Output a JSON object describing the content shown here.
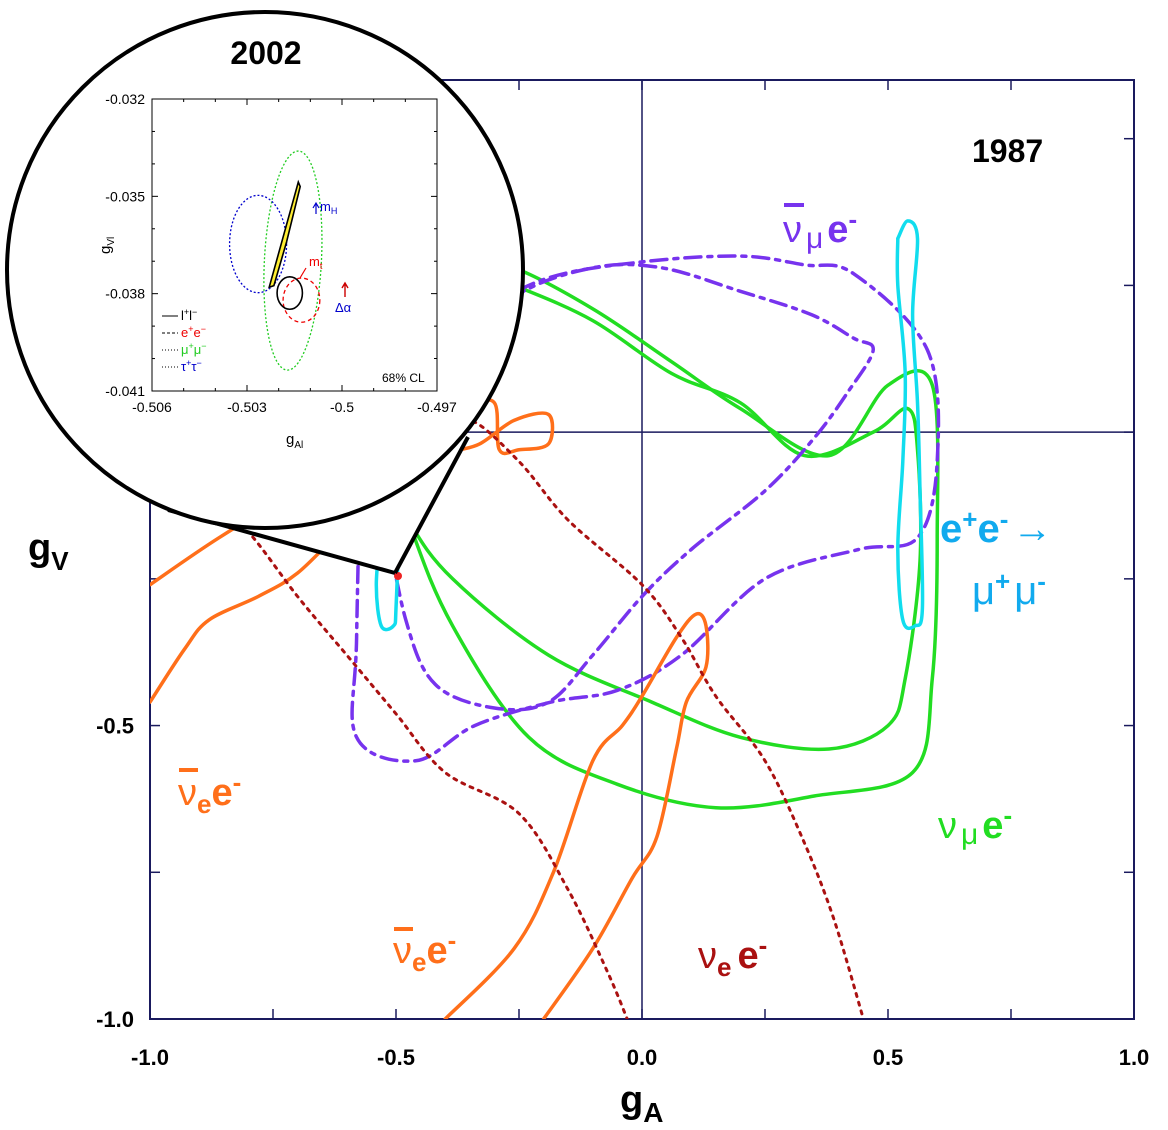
{
  "chart_data": [
    {
      "type": "line",
      "title": "1987",
      "xlabel": "g",
      "xlabel_sub": "A",
      "ylabel": "g",
      "ylabel_sub": "V",
      "xlim": [
        -1.0,
        1.0
      ],
      "ylim": [
        -1.0,
        0.6
      ],
      "xticks": [
        "-1.0",
        "-0.5",
        "0.0",
        "0.5",
        "1.0"
      ],
      "yticks": [
        "-1.0",
        "-0.5",
        "0.0"
      ],
      "grid": false,
      "reference_lines": {
        "x": 0.0,
        "y": 0.0
      },
      "labels": {
        "numubar": {
          "nu": "ν",
          "mu": "μ",
          "e": "e",
          "sup": "-"
        },
        "ee": {
          "line1": "e",
          "sup1": "+",
          "e2": "e",
          "sup2": "-",
          "arrow": "→",
          "mu1": "μ",
          "sup3": "+",
          "mu2": "μ",
          "sup4": "-"
        },
        "numu": {
          "nu": "ν",
          "mu": "μ",
          "e": "e",
          "sup": "-"
        },
        "nuebar_left": {
          "nu": "ν",
          "sub": "e",
          "e": "e",
          "sup": "-"
        },
        "nuebar_bottom": {
          "nu": "ν",
          "sub": "e",
          "e": "e",
          "sup": "-"
        },
        "nue": {
          "nu": "ν",
          "sub": "e",
          "e": "e",
          "sup": "-"
        }
      },
      "series": [
        {
          "key": "numu",
          "color": "#22dd22",
          "style": "solid",
          "curves": [
            [
              [
                -0.58,
                0.105
              ],
              [
                -0.565,
                0.168
              ],
              [
                -0.545,
                0.216
              ],
              [
                -0.503,
                0.255
              ],
              [
                -0.455,
                0.275
              ],
              [
                -0.38,
                0.285
              ],
              [
                -0.26,
                0.25
              ],
              [
                -0.1,
                0.19
              ],
              [
                0.06,
                0.1
              ],
              [
                0.2,
                0.05
              ],
              [
                0.33,
                -0.04
              ],
              [
                0.47,
                0.0
              ],
              [
                0.54,
                0.04
              ],
              [
                0.56,
                -0.03
              ],
              [
                0.565,
                -0.22
              ],
              [
                0.535,
                -0.42
              ],
              [
                0.5,
                -0.5
              ],
              [
                0.38,
                -0.54
              ],
              [
                0.2,
                -0.52
              ],
              [
                0.02,
                -0.46
              ],
              [
                -0.19,
                -0.38
              ],
              [
                -0.385,
                -0.25
              ],
              [
                -0.475,
                -0.15
              ],
              [
                -0.535,
                -0.04
              ],
              [
                -0.58,
                0.105
              ]
            ],
            [
              [
                -0.58,
                0.22
              ],
              [
                -0.565,
                0.236
              ],
              [
                -0.5,
                0.27
              ],
              [
                -0.455,
                0.282
              ],
              [
                -0.38,
                0.3
              ],
              [
                -0.26,
                0.28
              ],
              [
                -0.1,
                0.21
              ],
              [
                0.06,
                0.12
              ],
              [
                0.2,
                0.04
              ],
              [
                0.38,
                -0.04
              ],
              [
                0.5,
                0.08
              ],
              [
                0.59,
                0.08
              ],
              [
                0.6,
                -0.18
              ],
              [
                0.59,
                -0.42
              ],
              [
                0.55,
                -0.58
              ],
              [
                0.35,
                -0.62
              ],
              [
                0.15,
                -0.64
              ],
              [
                -0.05,
                -0.6
              ],
              [
                -0.23,
                -0.52
              ],
              [
                -0.385,
                -0.33
              ],
              [
                -0.475,
                -0.15
              ],
              [
                -0.56,
                0.08
              ],
              [
                -0.58,
                0.22
              ]
            ]
          ]
        },
        {
          "key": "numubar",
          "color": "#7733ee",
          "style": "dashdot",
          "curves": [
            [
              [
                -0.53,
                -0.11
              ],
              [
                -0.48,
                -0.015
              ],
              [
                -0.38,
                0.12
              ],
              [
                -0.26,
                0.23
              ],
              [
                -0.1,
                0.28
              ],
              [
                0.04,
                0.28
              ],
              [
                0.2,
                0.24
              ],
              [
                0.345,
                0.2
              ],
              [
                0.43,
                0.16
              ],
              [
                0.47,
                0.14
              ],
              [
                0.42,
                0.07
              ],
              [
                0.35,
                -0.01
              ],
              [
                0.25,
                -0.1
              ],
              [
                0.1,
                -0.2
              ],
              [
                0.0,
                -0.28
              ],
              [
                -0.1,
                -0.38
              ],
              [
                -0.19,
                -0.46
              ],
              [
                -0.3,
                -0.47
              ],
              [
                -0.42,
                -0.43
              ],
              [
                -0.48,
                -0.32
              ],
              [
                -0.53,
                -0.11
              ]
            ],
            [
              [
                -0.57,
                0.035
              ],
              [
                -0.51,
                0.115
              ],
              [
                -0.38,
                0.18
              ],
              [
                -0.2,
                0.26
              ],
              [
                0.0,
                0.29
              ],
              [
                0.2,
                0.3
              ],
              [
                0.33,
                0.285
              ],
              [
                0.43,
                0.27
              ],
              [
                0.58,
                0.14
              ],
              [
                0.6,
                -0.05
              ],
              [
                0.56,
                -0.18
              ],
              [
                0.44,
                -0.2
              ],
              [
                0.25,
                -0.25
              ],
              [
                0.08,
                -0.38
              ],
              [
                -0.05,
                -0.44
              ],
              [
                -0.185,
                -0.46
              ],
              [
                -0.34,
                -0.5
              ],
              [
                -0.46,
                -0.56
              ],
              [
                -0.58,
                -0.52
              ],
              [
                -0.58,
                -0.35
              ],
              [
                -0.57,
                0.035
              ]
            ]
          ]
        },
        {
          "key": "ee",
          "color": "#11ddee",
          "style": "solid",
          "curves": [
            [
              [
                -0.5,
                0.12
              ],
              [
                -0.49,
                0.05
              ],
              [
                -0.5,
                -0.03
              ],
              [
                -0.495,
                -0.15
              ],
              [
                -0.5,
                -0.3
              ],
              [
                -0.505,
                -0.33
              ],
              [
                -0.53,
                -0.33
              ],
              [
                -0.54,
                -0.26
              ],
              [
                -0.53,
                -0.16
              ],
              [
                -0.52,
                -0.05
              ],
              [
                -0.515,
                0.05
              ],
              [
                -0.52,
                0.16
              ],
              [
                -0.5,
                0.12
              ]
            ],
            [
              [
                0.52,
                0.33
              ],
              [
                0.54,
                0.36
              ],
              [
                0.56,
                0.33
              ],
              [
                0.55,
                0.2
              ],
              [
                0.56,
                0.05
              ],
              [
                0.565,
                -0.1
              ],
              [
                0.57,
                -0.3
              ],
              [
                0.555,
                -0.33
              ],
              [
                0.53,
                -0.32
              ],
              [
                0.52,
                -0.2
              ],
              [
                0.53,
                -0.05
              ],
              [
                0.535,
                0.1
              ],
              [
                0.52,
                0.25
              ],
              [
                0.52,
                0.33
              ]
            ]
          ]
        },
        {
          "key": "nuebar",
          "color": "#ff6f1a",
          "style": "solid",
          "curves": [
            [
              [
                -1.0,
                -0.46
              ],
              [
                -0.93,
                -0.37
              ],
              [
                -0.88,
                -0.32
              ],
              [
                -0.78,
                -0.28
              ],
              [
                -0.7,
                -0.24
              ],
              [
                -0.6,
                -0.16
              ],
              [
                -0.5,
                -0.1
              ],
              [
                -0.4,
                -0.04
              ],
              [
                -0.33,
                -0.02
              ],
              [
                -0.26,
                0.02
              ],
              [
                -0.19,
                0.03
              ],
              [
                -0.19,
                -0.02
              ],
              [
                -0.25,
                -0.03
              ],
              [
                -0.29,
                -0.03
              ],
              [
                -0.3,
                0.05
              ],
              [
                -0.36,
                0.045
              ],
              [
                -0.44,
                0.02
              ],
              [
                -0.52,
                -0.03
              ],
              [
                -0.7,
                -0.1
              ],
              [
                -0.86,
                -0.18
              ],
              [
                -1.0,
                -0.26
              ]
            ],
            [
              [
                -0.4,
                -1.0
              ],
              [
                -0.26,
                -0.88
              ],
              [
                -0.18,
                -0.75
              ],
              [
                -0.1,
                -0.56
              ],
              [
                -0.04,
                -0.5
              ],
              [
                0.0,
                -0.45
              ],
              [
                0.07,
                -0.35
              ],
              [
                0.11,
                -0.31
              ],
              [
                0.13,
                -0.33
              ],
              [
                0.13,
                -0.4
              ],
              [
                0.09,
                -0.46
              ],
              [
                0.07,
                -0.54
              ],
              [
                0.03,
                -0.69
              ],
              [
                -0.02,
                -0.76
              ],
              [
                -0.1,
                -0.88
              ],
              [
                -0.2,
                -1.0
              ]
            ]
          ]
        },
        {
          "key": "nue",
          "color": "#aa1111",
          "style": "dotted",
          "curves": [
            [
              [
                -1.0,
                -0.07
              ],
              [
                -0.9,
                -0.09
              ],
              [
                -0.8,
                -0.17
              ],
              [
                -0.7,
                -0.28
              ],
              [
                -0.6,
                -0.38
              ],
              [
                -0.5,
                -0.48
              ],
              [
                -0.4,
                -0.58
              ],
              [
                -0.25,
                -0.65
              ],
              [
                -0.15,
                -0.78
              ],
              [
                -0.07,
                -0.92
              ],
              [
                -0.03,
                -1.0
              ]
            ],
            [
              [
                -0.47,
                -0.02
              ],
              [
                -0.39,
                -0.03
              ],
              [
                -0.35,
                0.02
              ],
              [
                -0.25,
                -0.05
              ],
              [
                -0.15,
                -0.15
              ],
              [
                0.0,
                -0.26
              ],
              [
                0.08,
                -0.35
              ],
              [
                0.15,
                -0.45
              ],
              [
                0.25,
                -0.56
              ],
              [
                0.33,
                -0.7
              ],
              [
                0.39,
                -0.83
              ],
              [
                0.45,
                -1.0
              ]
            ]
          ]
        }
      ]
    },
    {
      "type": "line",
      "title": "2002",
      "xlabel": "g",
      "xlabel_sub": "Al",
      "ylabel": "g",
      "ylabel_sub": "Vl",
      "xlim": [
        -0.506,
        -0.497
      ],
      "ylim": [
        -0.041,
        -0.032
      ],
      "xticks": [
        "-0.506",
        "-0.503",
        "-0.5",
        "-0.497"
      ],
      "yticks": [
        "-0.032",
        "-0.035",
        "-0.038",
        "-0.041"
      ],
      "grid": false,
      "legend_placement": "bottom-left",
      "legend": [
        {
          "label": "l",
          "sup": "+",
          "label2": "l",
          "sup2": "−",
          "color": "#000000",
          "style": "solid"
        },
        {
          "label": "e",
          "sup": "+",
          "label2": "e",
          "sup2": "−",
          "color": "#ee0000",
          "style": "dashed"
        },
        {
          "label": "μ",
          "sup": "+",
          "label2": "μ",
          "sup2": "−",
          "color": "#22cc22",
          "style": "dotted"
        },
        {
          "label": "τ",
          "sup": "+",
          "label2": "τ",
          "sup2": "−",
          "color": "#0000cc",
          "style": "dotted"
        }
      ],
      "annotations": {
        "cl": "68% CL",
        "mh": {
          "main": "m",
          "sub": "H"
        },
        "mt": {
          "main": "m",
          "sub": "t"
        },
        "dalpha": "Δα"
      },
      "series": [
        {
          "key": "mumu",
          "color": "#22cc22",
          "center": [
            -0.50155,
            -0.03698
          ],
          "radii": [
            0.0009,
            0.00338
          ],
          "rotation_deg": -3
        },
        {
          "key": "tautau",
          "color": "#0000cc",
          "center": [
            -0.50265,
            -0.03647
          ],
          "radii": [
            0.0009,
            0.0015
          ],
          "rotation_deg": 0
        },
        {
          "key": "ee",
          "color": "#ee0000",
          "center": [
            -0.50128,
            -0.0382
          ],
          "radii": [
            0.00058,
            0.00068
          ],
          "rotation_deg": 0
        },
        {
          "key": "ll",
          "color": "#000000",
          "center": [
            -0.50165,
            -0.03798
          ],
          "radii": [
            0.0004,
            0.0005
          ],
          "rotation_deg": 0
        }
      ],
      "sm_band": [
        [
          -0.50138,
          -0.03456
        ],
        [
          -0.5019,
          -0.0364
        ],
        [
          -0.5023,
          -0.0378
        ],
        [
          -0.50215,
          -0.03775
        ],
        [
          -0.50175,
          -0.0364
        ],
        [
          -0.50132,
          -0.0347
        ]
      ]
    }
  ]
}
